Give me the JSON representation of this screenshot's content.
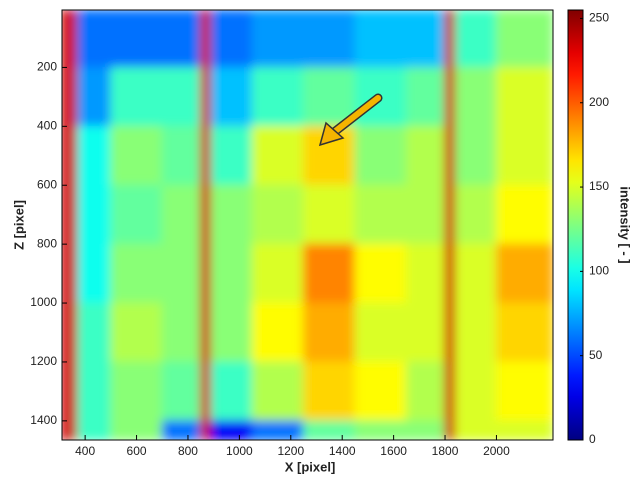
{
  "chart_data": {
    "type": "heatmap",
    "xlabel": "X [pixel]",
    "ylabel": "Z [pixel]",
    "colorbar_label": "intensity [ - ]",
    "colormap": "jet",
    "x_edges": [
      310,
      370,
      500,
      700,
      850,
      890,
      1050,
      1250,
      1450,
      1650,
      1800,
      1840,
      2000,
      2220
    ],
    "y_edges": [
      5,
      200,
      400,
      600,
      800,
      1000,
      1200,
      1400,
      1465
    ],
    "values": [
      [
        235,
        60,
        60,
        60,
        235,
        60,
        70,
        70,
        80,
        80,
        235,
        110,
        130
      ],
      [
        235,
        70,
        110,
        110,
        235,
        80,
        110,
        120,
        110,
        120,
        235,
        130,
        150
      ],
      [
        235,
        100,
        130,
        120,
        235,
        110,
        150,
        170,
        130,
        140,
        235,
        130,
        150
      ],
      [
        235,
        100,
        120,
        130,
        235,
        130,
        140,
        150,
        140,
        140,
        235,
        140,
        160
      ],
      [
        235,
        100,
        130,
        130,
        235,
        130,
        150,
        190,
        160,
        150,
        235,
        150,
        180
      ],
      [
        235,
        110,
        140,
        130,
        235,
        130,
        160,
        180,
        150,
        150,
        235,
        150,
        170
      ],
      [
        235,
        110,
        130,
        120,
        235,
        110,
        140,
        170,
        160,
        140,
        235,
        150,
        160
      ],
      [
        235,
        110,
        130,
        60,
        235,
        30,
        60,
        120,
        130,
        130,
        235,
        150,
        150
      ]
    ],
    "xlim": [
      310,
      2220
    ],
    "ylim": [
      5,
      1465
    ],
    "y_inverted": true,
    "xticks": [
      400,
      600,
      800,
      1000,
      1200,
      1400,
      1600,
      1800,
      2000
    ],
    "yticks": [
      200,
      400,
      600,
      800,
      1000,
      1200,
      1400
    ],
    "clim": [
      0,
      255
    ],
    "cticks": [
      0,
      50,
      100,
      150,
      200,
      250
    ]
  }
}
